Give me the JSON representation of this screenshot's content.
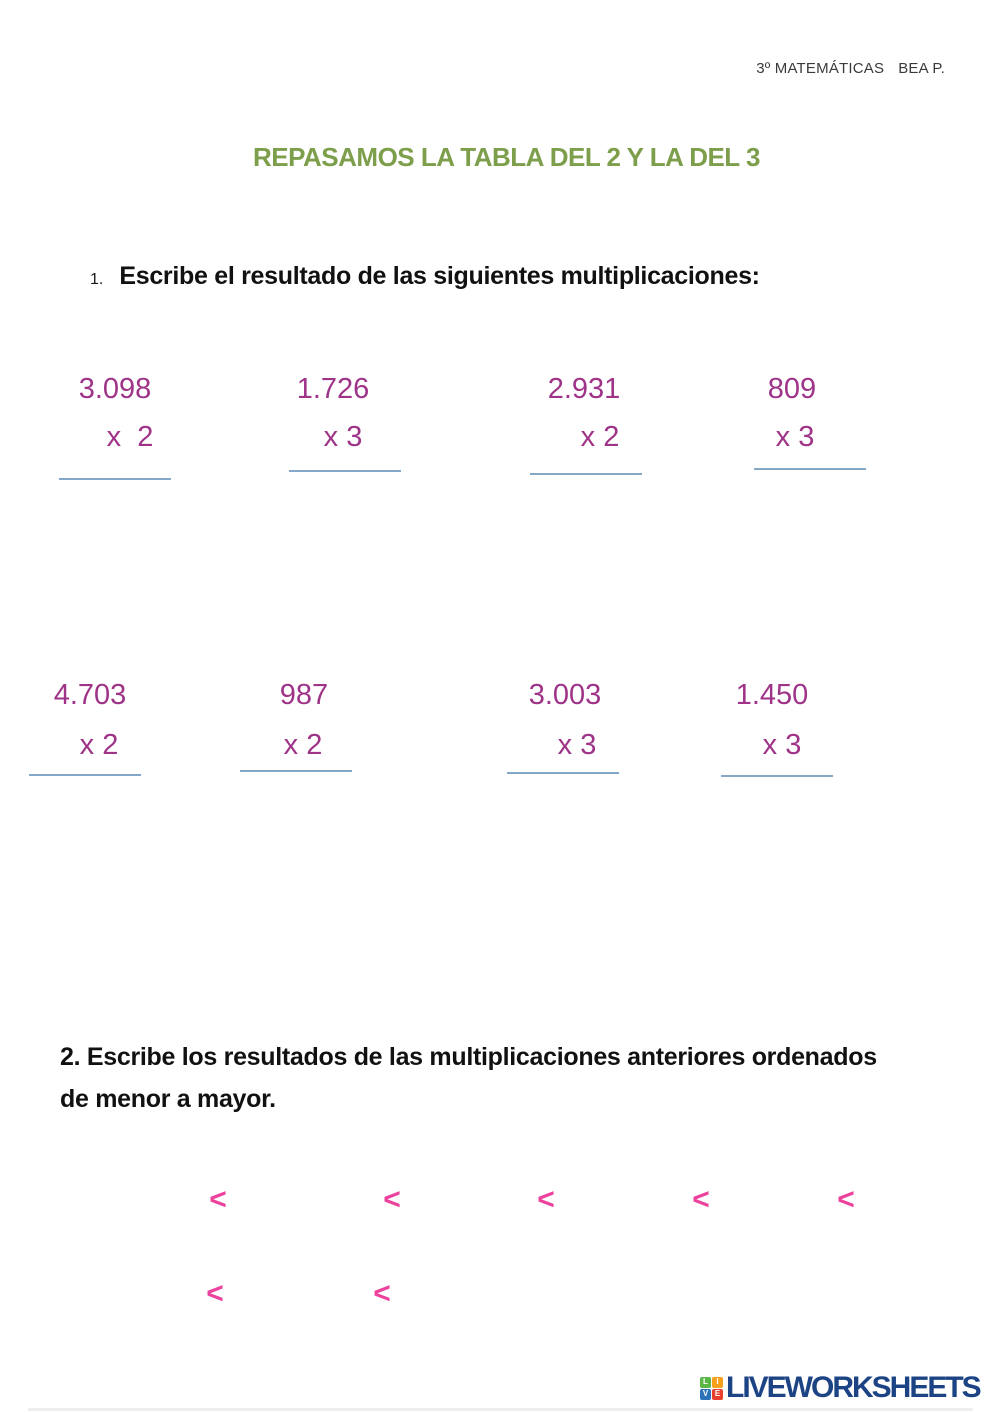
{
  "header": {
    "course": "3º MATEMÁTICAS",
    "author": "BEA P."
  },
  "title": "REPASAMOS LA TABLA DEL 2 Y LA DEL 3",
  "section1": {
    "number": "1.",
    "heading": "Escribe el resultado de las siguientes multiplicaciones:",
    "problems": [
      {
        "multiplicand": "3.098",
        "multiplier": "x  2"
      },
      {
        "multiplicand": "1.726",
        "multiplier": "x 3"
      },
      {
        "multiplicand": "2.931",
        "multiplier": "x 2"
      },
      {
        "multiplicand": "809",
        "multiplier": "x 3"
      },
      {
        "multiplicand": "4.703",
        "multiplier": "x 2"
      },
      {
        "multiplicand": "987",
        "multiplier": "x 2"
      },
      {
        "multiplicand": "3.003",
        "multiplier": "x 3"
      },
      {
        "multiplicand": "1.450",
        "multiplier": "x 3"
      }
    ]
  },
  "section2": {
    "heading_line1": "2. Escribe los resultados de las multiplicaciones anteriores ordenados",
    "heading_line2": "de menor a mayor.",
    "comparison_symbol": "<",
    "symbols_row1_count": 5,
    "symbols_row2_count": 2
  },
  "footer": {
    "logo_text": "LIVEWORKSHEETS",
    "logo_tiles": [
      {
        "letter": "L",
        "color": "#5cb647"
      },
      {
        "letter": "I",
        "color": "#f7a11a"
      },
      {
        "letter": "V",
        "color": "#2d71b8"
      },
      {
        "letter": "E",
        "color": "#e8402e"
      }
    ]
  },
  "colors": {
    "title_green": "#7d9e4b",
    "number_purple": "#9e3388",
    "symbol_pink": "#ec419c",
    "answer_line_blue": "#85a8c8",
    "logo_navy": "#1c4484"
  }
}
